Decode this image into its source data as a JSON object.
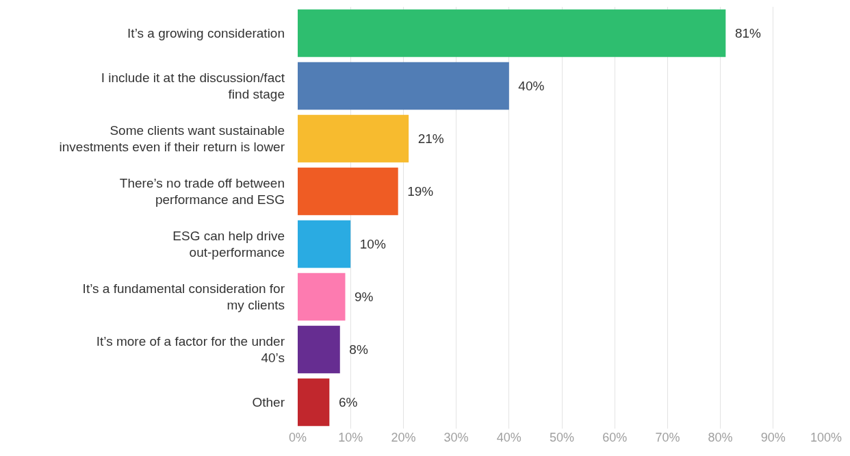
{
  "chart_data": {
    "type": "bar",
    "orientation": "horizontal",
    "categories": [
      "It’s a growing consideration",
      "I include it at the discussion/fact\nfind stage",
      "Some clients want sustainable\ninvestments even if their return is lower",
      "There’s no trade off between\nperformance and ESG",
      "ESG can help drive\nout-performance",
      "It’s a fundamental consideration for\nmy clients",
      "It’s more of a factor for the under\n40’s",
      "Other"
    ],
    "values": [
      81,
      40,
      21,
      19,
      10,
      9,
      8,
      6
    ],
    "colors": [
      "#2ebe6f",
      "#517db5",
      "#f7bb2f",
      "#ef5c24",
      "#2aabe2",
      "#fd7bb0",
      "#662d91",
      "#c1272d"
    ],
    "value_labels": [
      "81%",
      "40%",
      "21%",
      "19%",
      "10%",
      "9%",
      "8%",
      "6%"
    ],
    "xlim": [
      0,
      100
    ],
    "xticks": [
      {
        "value": 0,
        "label": "0%"
      },
      {
        "value": 10,
        "label": "10%"
      },
      {
        "value": 20,
        "label": "20%"
      },
      {
        "value": 30,
        "label": "30%"
      },
      {
        "value": 40,
        "label": "40%"
      },
      {
        "value": 50,
        "label": "50%"
      },
      {
        "value": 60,
        "label": "60%"
      },
      {
        "value": 70,
        "label": "70%"
      },
      {
        "value": 80,
        "label": "80%"
      },
      {
        "value": 90,
        "label": "90%"
      },
      {
        "value": 100,
        "label": "100%"
      }
    ],
    "grid": "x"
  }
}
